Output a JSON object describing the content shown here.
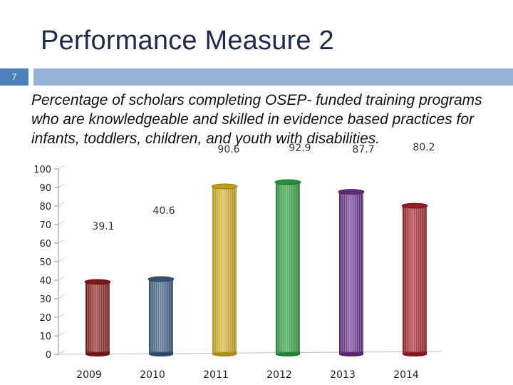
{
  "slide": {
    "title": "Performance Measure 2",
    "number": "7",
    "subtitle": "Percentage of scholars completing OSEP- funded training programs who are knowledgeable and skilled in evidence based practices for infants, toddlers, children, and youth with disabilities."
  },
  "chart_data": {
    "type": "bar",
    "title": "",
    "xlabel": "",
    "ylabel": "",
    "categories": [
      "2009",
      "2010",
      "2011",
      "2012",
      "2013",
      "2014"
    ],
    "series": [
      {
        "values": [
          39.1,
          40.6,
          90.6,
          92.9,
          87.7,
          80.2
        ],
        "data_labels": [
          "39.1",
          "40.6",
          "90.6",
          "92.9",
          "87.7",
          "80.2"
        ],
        "colors": [
          "#8b1a1a",
          "#3b5a82",
          "#d4b020",
          "#2e9e3e",
          "#6a2f8a",
          "#a31d2a"
        ]
      }
    ],
    "yticks": [
      "0",
      "10",
      "20",
      "30",
      "40",
      "50",
      "60",
      "70",
      "80",
      "90",
      "100"
    ],
    "ylim": [
      0,
      100
    ],
    "grid": false,
    "legend": "none"
  }
}
